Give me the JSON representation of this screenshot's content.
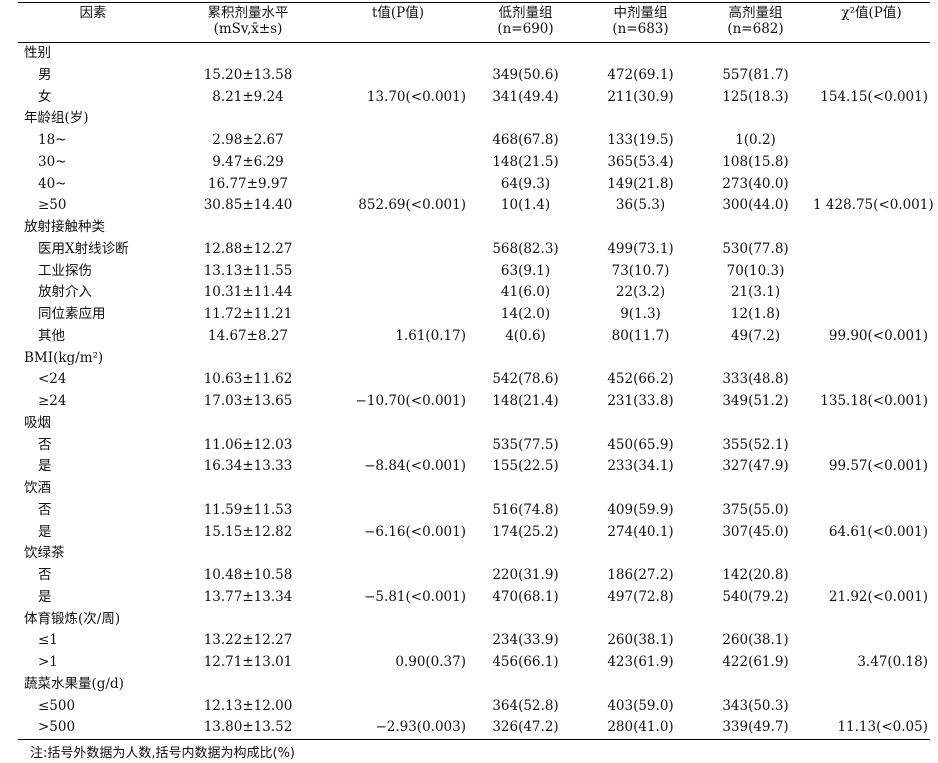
{
  "headers": {
    "factor": "因素",
    "dose_line1": "累积剂量水平",
    "dose_line2": "(mSv,x̄±s)",
    "t_label": "t值(P值)",
    "low_line1": "低剂量组",
    "low_line2": "(n=690)",
    "mid_line1": "中剂量组",
    "mid_line2": "(n=683)",
    "high_line1": "高剂量组",
    "high_line2": "(n=682)",
    "chi_label": "χ²值(P值)"
  },
  "rows": [
    {
      "label": "性别",
      "type": "cat"
    },
    {
      "label": "男",
      "type": "sub",
      "dose": "15.20±13.58",
      "t": "",
      "low": "349(50.6)",
      "mid": "472(69.1)",
      "high": "557(81.7)",
      "chi": ""
    },
    {
      "label": "女",
      "type": "sub",
      "dose": "8.21±9.24",
      "t": "13.70(<0.001)",
      "low": "341(49.4)",
      "mid": "211(30.9)",
      "high": "125(18.3)",
      "chi": "154.15(<0.001)"
    },
    {
      "label": "年龄组(岁)",
      "type": "cat"
    },
    {
      "label": "18~",
      "type": "sub",
      "dose": "2.98±2.67",
      "t": "",
      "low": "468(67.8)",
      "mid": "133(19.5)",
      "high": "1(0.2)",
      "chi": ""
    },
    {
      "label": "30~",
      "type": "sub",
      "dose": "9.47±6.29",
      "t": "",
      "low": "148(21.5)",
      "mid": "365(53.4)",
      "high": "108(15.8)",
      "chi": ""
    },
    {
      "label": "40~",
      "type": "sub",
      "dose": "16.77±9.97",
      "t": "",
      "low": "64(9.3)",
      "mid": "149(21.8)",
      "high": "273(40.0)",
      "chi": ""
    },
    {
      "label": "≥50",
      "type": "sub",
      "dose": "30.85±14.40",
      "t": "852.69(<0.001)",
      "low": "10(1.4)",
      "mid": "36(5.3)",
      "high": "300(44.0)",
      "chi": "1 428.75(<0.001)"
    },
    {
      "label": "放射接触种类",
      "type": "cat"
    },
    {
      "label": "医用X射线诊断",
      "type": "sub",
      "dose": "12.88±12.27",
      "t": "",
      "low": "568(82.3)",
      "mid": "499(73.1)",
      "high": "530(77.8)",
      "chi": ""
    },
    {
      "label": "工业探伤",
      "type": "sub",
      "dose": "13.13±11.55",
      "t": "",
      "low": "63(9.1)",
      "mid": "73(10.7)",
      "high": "70(10.3)",
      "chi": ""
    },
    {
      "label": "放射介入",
      "type": "sub",
      "dose": "10.31±11.44",
      "t": "",
      "low": "41(6.0)",
      "mid": "22(3.2)",
      "high": "21(3.1)",
      "chi": ""
    },
    {
      "label": "同位素应用",
      "type": "sub",
      "dose": "11.72±11.21",
      "t": "",
      "low": "14(2.0)",
      "mid": "9(1.3)",
      "high": "12(1.8)",
      "chi": ""
    },
    {
      "label": "其他",
      "type": "sub",
      "dose": "14.67±8.27",
      "t": "1.61(0.17)",
      "low": "4(0.6)",
      "mid": "80(11.7)",
      "high": "49(7.2)",
      "chi": "99.90(<0.001)"
    },
    {
      "label": "BMI(kg/m²)",
      "type": "cat"
    },
    {
      "label": "<24",
      "type": "sub",
      "dose": "10.63±11.62",
      "t": "",
      "low": "542(78.6)",
      "mid": "452(66.2)",
      "high": "333(48.8)",
      "chi": ""
    },
    {
      "label": "≥24",
      "type": "sub",
      "dose": "17.03±13.65",
      "t": "−10.70(<0.001)",
      "low": "148(21.4)",
      "mid": "231(33.8)",
      "high": "349(51.2)",
      "chi": "135.18(<0.001)"
    },
    {
      "label": "吸烟",
      "type": "cat"
    },
    {
      "label": "否",
      "type": "sub",
      "dose": "11.06±12.03",
      "t": "",
      "low": "535(77.5)",
      "mid": "450(65.9)",
      "high": "355(52.1)",
      "chi": ""
    },
    {
      "label": "是",
      "type": "sub",
      "dose": "16.34±13.33",
      "t": "−8.84(<0.001)",
      "low": "155(22.5)",
      "mid": "233(34.1)",
      "high": "327(47.9)",
      "chi": "99.57(<0.001)"
    },
    {
      "label": "饮酒",
      "type": "cat"
    },
    {
      "label": "否",
      "type": "sub",
      "dose": "11.59±11.53",
      "t": "",
      "low": "516(74.8)",
      "mid": "409(59.9)",
      "high": "375(55.0)",
      "chi": ""
    },
    {
      "label": "是",
      "type": "sub",
      "dose": "15.15±12.82",
      "t": "−6.16(<0.001)",
      "low": "174(25.2)",
      "mid": "274(40.1)",
      "high": "307(45.0)",
      "chi": "64.61(<0.001)"
    },
    {
      "label": "饮绿茶",
      "type": "cat"
    },
    {
      "label": "否",
      "type": "sub",
      "dose": "10.48±10.58",
      "t": "",
      "low": "220(31.9)",
      "mid": "186(27.2)",
      "high": "142(20.8)",
      "chi": ""
    },
    {
      "label": "是",
      "type": "sub",
      "dose": "13.77±13.34",
      "t": "−5.81(<0.001)",
      "low": "470(68.1)",
      "mid": "497(72.8)",
      "high": "540(79.2)",
      "chi": "21.92(<0.001)"
    },
    {
      "label": "体育锻炼(次/周)",
      "type": "cat"
    },
    {
      "label": "≤1",
      "type": "sub",
      "dose": "13.22±12.27",
      "t": "",
      "low": "234(33.9)",
      "mid": "260(38.1)",
      "high": "260(38.1)",
      "chi": ""
    },
    {
      "label": ">1",
      "type": "sub",
      "dose": "12.71±13.01",
      "t": "0.90(0.37)",
      "low": "456(66.1)",
      "mid": "423(61.9)",
      "high": "422(61.9)",
      "chi": "3.47(0.18)"
    },
    {
      "label": "蔬菜水果量(g/d)",
      "type": "cat"
    },
    {
      "label": "≤500",
      "type": "sub",
      "dose": "12.13±12.00",
      "t": "",
      "low": "364(52.8)",
      "mid": "403(59.0)",
      "high": "343(50.3)",
      "chi": ""
    },
    {
      "label": ">500",
      "type": "sub",
      "dose": "13.80±13.52",
      "t": "−2.93(0.003)",
      "low": "326(47.2)",
      "mid": "280(41.0)",
      "high": "339(49.7)",
      "chi": "11.13(<0.05)"
    }
  ],
  "note": "注:括号外数据为人数,括号内数据为构成比(%)"
}
